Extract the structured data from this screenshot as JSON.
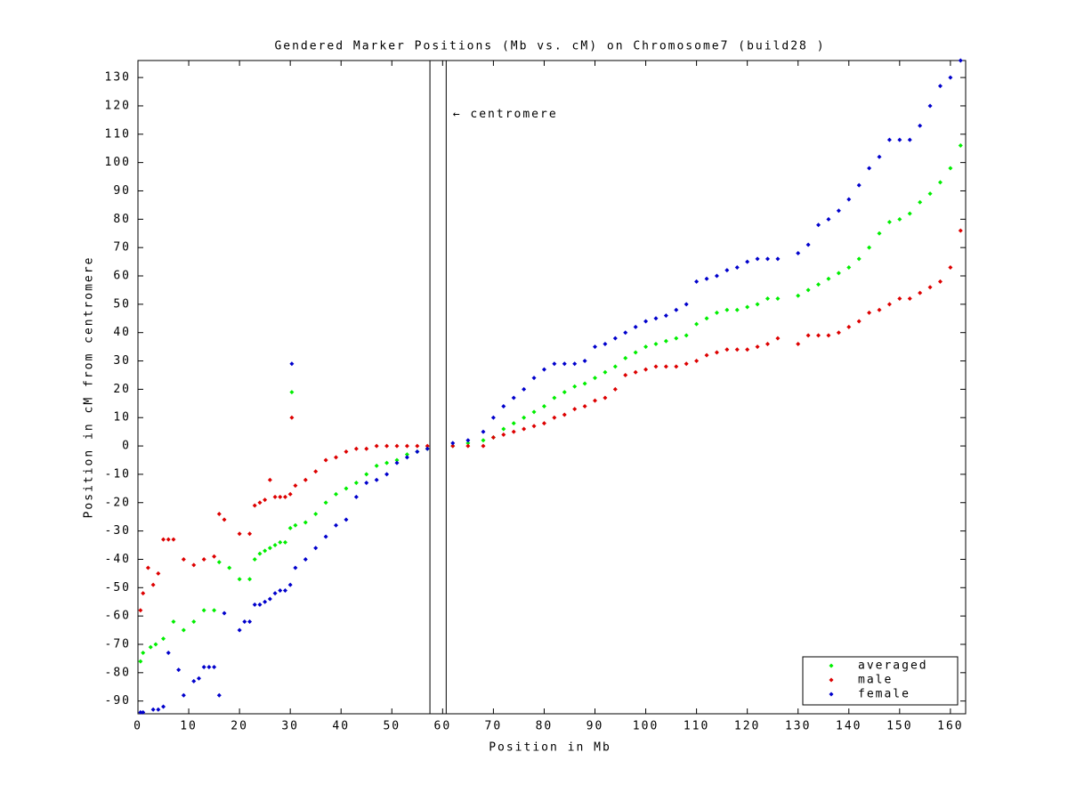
{
  "chart_data": {
    "type": "scatter",
    "title": "Gendered Marker Positions (Mb vs. cM) on Chromosome7 (build28 )",
    "x_label": "Position in Mb",
    "y_label": "Position in cM from centromere",
    "xlim": [
      0,
      163
    ],
    "ylim": [
      -94.5,
      136
    ],
    "xticks": [
      0,
      10,
      20,
      30,
      40,
      50,
      60,
      70,
      80,
      90,
      100,
      110,
      120,
      130,
      140,
      150,
      160
    ],
    "yticks": [
      -90,
      -80,
      -70,
      -60,
      -50,
      -40,
      -30,
      -20,
      -10,
      0,
      10,
      20,
      30,
      40,
      50,
      60,
      70,
      80,
      90,
      100,
      110,
      120,
      130
    ],
    "vlines": [
      57.5,
      60.7
    ],
    "annotations": [
      {
        "text": "← centromere",
        "x": 62,
        "y": 117
      }
    ],
    "legend": "lower right",
    "series": [
      {
        "name": "averaged",
        "color": "#00ee00",
        "x": [
          0.5,
          1,
          2.5,
          3.5,
          5,
          7,
          9,
          11,
          13,
          15,
          16,
          18,
          20,
          22,
          23,
          24,
          25,
          26,
          27,
          28,
          29,
          30,
          30.3,
          31,
          33,
          35,
          37,
          39,
          41,
          43,
          45,
          47,
          49,
          51,
          53,
          55,
          57,
          62,
          65,
          68,
          70,
          72,
          74,
          76,
          78,
          80,
          82,
          84,
          86,
          88,
          90,
          92,
          94,
          96,
          98,
          100,
          102,
          104,
          106,
          108,
          110,
          112,
          114,
          116,
          118,
          120,
          122,
          124,
          126,
          130,
          132,
          134,
          136,
          138,
          140,
          142,
          144,
          146,
          148,
          150,
          152,
          154,
          156,
          158,
          160,
          162
        ],
        "values": [
          -76,
          -73,
          -71,
          -70,
          -68,
          -62,
          -65,
          -62,
          -58,
          -58,
          -41,
          -43,
          -47,
          -47,
          -40,
          -38,
          -37,
          -36,
          -35,
          -34,
          -34,
          -29,
          19,
          -28,
          -27,
          -24,
          -20,
          -17,
          -15,
          -13,
          -10,
          -7,
          -6,
          -5,
          -3,
          -2,
          -1,
          0,
          1,
          2,
          3,
          6,
          8,
          10,
          12,
          14,
          17,
          19,
          21,
          22,
          24,
          26,
          28,
          31,
          33,
          35,
          36,
          37,
          38,
          39,
          43,
          45,
          47,
          48,
          48,
          49,
          50,
          52,
          52,
          53,
          55,
          57,
          59,
          61,
          63,
          66,
          70,
          75,
          79,
          80,
          82,
          86,
          89,
          93,
          98,
          106
        ]
      },
      {
        "name": "male",
        "color": "#dd0000",
        "x": [
          0.5,
          1,
          2,
          3,
          4,
          5,
          6,
          7,
          9,
          11,
          13,
          15,
          16,
          17,
          20,
          22,
          23,
          24,
          25,
          26,
          27,
          28,
          29,
          30,
          30.3,
          31,
          33,
          35,
          37,
          39,
          41,
          43,
          45,
          47,
          49,
          51,
          53,
          55,
          57,
          62,
          65,
          68,
          70,
          72,
          74,
          76,
          78,
          80,
          82,
          84,
          86,
          88,
          90,
          92,
          94,
          96,
          98,
          100,
          102,
          104,
          106,
          108,
          110,
          112,
          114,
          116,
          118,
          120,
          122,
          124,
          126,
          130,
          132,
          134,
          136,
          138,
          140,
          142,
          144,
          146,
          148,
          150,
          152,
          154,
          156,
          158,
          160,
          162
        ],
        "values": [
          -58,
          -52,
          -43,
          -49,
          -45,
          -33,
          -33,
          -33,
          -40,
          -42,
          -40,
          -39,
          -24,
          -26,
          -31,
          -31,
          -21,
          -20,
          -19,
          -12,
          -18,
          -18,
          -18,
          -17,
          10,
          -14,
          -12,
          -9,
          -5,
          -4,
          -2,
          -1,
          -1,
          0,
          0,
          0,
          0,
          0,
          0,
          0,
          0,
          0,
          3,
          4,
          5,
          6,
          7,
          8,
          10,
          11,
          13,
          14,
          16,
          17,
          20,
          25,
          26,
          27,
          28,
          28,
          28,
          29,
          30,
          32,
          33,
          34,
          34,
          34,
          35,
          36,
          38,
          36,
          39,
          39,
          39,
          40,
          42,
          44,
          47,
          48,
          50,
          52,
          52,
          54,
          56,
          58,
          63,
          76
        ]
      },
      {
        "name": "female",
        "color": "#0000cc",
        "x": [
          0.5,
          1,
          3,
          4,
          5,
          6,
          8,
          9,
          11,
          12,
          13,
          14,
          15,
          16,
          17,
          20,
          21,
          22,
          23,
          24,
          25,
          26,
          27,
          28,
          29,
          30,
          30.3,
          31,
          33,
          35,
          37,
          39,
          41,
          43,
          45,
          47,
          49,
          51,
          53,
          55,
          57,
          62,
          65,
          68,
          70,
          72,
          74,
          76,
          78,
          80,
          82,
          84,
          86,
          88,
          90,
          92,
          94,
          96,
          98,
          100,
          102,
          104,
          106,
          108,
          110,
          112,
          114,
          116,
          118,
          120,
          122,
          124,
          126,
          130,
          132,
          134,
          136,
          138,
          140,
          142,
          144,
          146,
          148,
          150,
          152,
          154,
          156,
          158,
          160,
          162
        ],
        "values": [
          -94,
          -94,
          -93,
          -93,
          -92,
          -73,
          -79,
          -88,
          -83,
          -82,
          -78,
          -78,
          -78,
          -88,
          -59,
          -65,
          -62,
          -62,
          -56,
          -56,
          -55,
          -54,
          -52,
          -51,
          -51,
          -49,
          29,
          -43,
          -40,
          -36,
          -32,
          -28,
          -26,
          -18,
          -13,
          -12,
          -10,
          -6,
          -4,
          -2,
          -1,
          1,
          2,
          5,
          10,
          14,
          17,
          20,
          24,
          27,
          29,
          29,
          29,
          30,
          35,
          36,
          38,
          40,
          42,
          44,
          45,
          46,
          48,
          50,
          58,
          59,
          60,
          62,
          63,
          65,
          66,
          66,
          66,
          68,
          71,
          78,
          80,
          83,
          87,
          92,
          98,
          102,
          108,
          108,
          108,
          113,
          120,
          127,
          130,
          136
        ]
      }
    ]
  }
}
